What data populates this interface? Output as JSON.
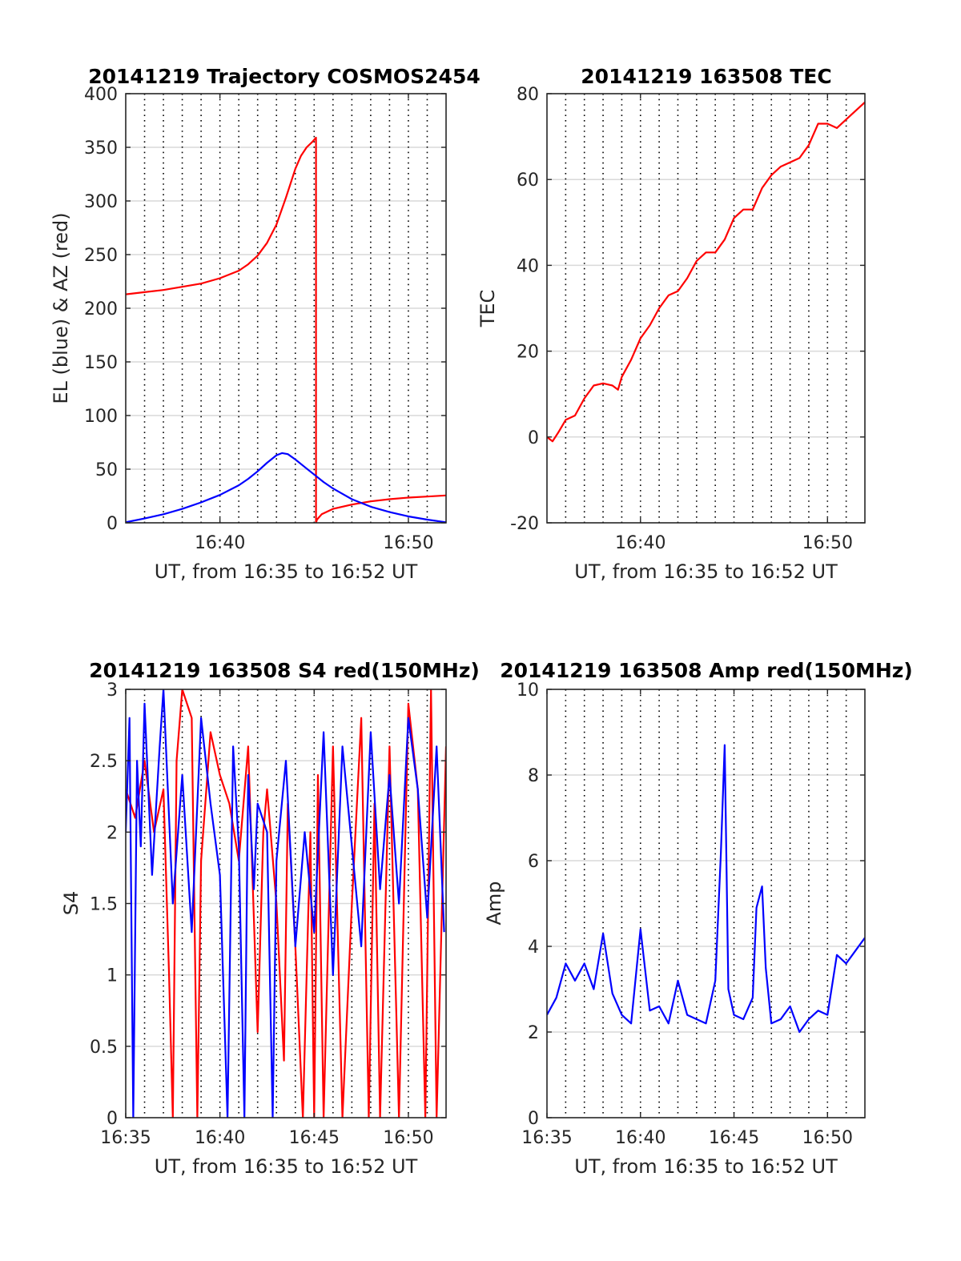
{
  "colors": {
    "red": "#ff0000",
    "blue": "#0000ff",
    "axis": "#262626",
    "hgrid": "#d9d9d9",
    "vgrid": "#000000"
  },
  "chart_data": [
    {
      "type": "line",
      "title": "20141219 Trajectory COSMOS2454",
      "xlabel": "UT, from 16:35 to 16:52 UT",
      "ylabel": "EL (blue) & AZ (red)",
      "xlim_minutes": [
        35,
        52
      ],
      "x_ticks": [
        40,
        50
      ],
      "x_tick_labels": [
        "16:40",
        "16:50"
      ],
      "ylim": [
        0,
        400
      ],
      "y_ticks": [
        0,
        50,
        100,
        150,
        200,
        250,
        300,
        350,
        400
      ],
      "y_tick_labels": [
        "0",
        "50",
        "100",
        "150",
        "200",
        "250",
        "300",
        "350",
        "400"
      ],
      "vgrid_minutes": [
        35,
        36,
        37,
        38,
        39,
        40,
        41,
        42,
        43,
        44,
        45,
        46,
        47,
        48,
        49,
        50,
        51,
        52
      ],
      "grid": true,
      "series": [
        {
          "color": "red",
          "x": [
            35.0,
            36.0,
            37.0,
            38.0,
            39.0,
            40.0,
            41.0,
            41.5,
            42.0,
            42.5,
            43.0,
            43.5,
            44.0,
            44.3,
            44.6,
            44.9,
            45.1,
            45.1,
            45.15,
            45.4,
            46.0,
            47.0,
            48.0,
            49.0,
            50.0,
            51.0,
            52.0
          ],
          "y": [
            213,
            215,
            217,
            220,
            223,
            228,
            235,
            241,
            249,
            261,
            278,
            303,
            330,
            342,
            350,
            355,
            359,
            0,
            3,
            8,
            13,
            17,
            20,
            22,
            23.5,
            24.5,
            25.5
          ]
        },
        {
          "color": "blue",
          "x": [
            35.0,
            36.0,
            37.0,
            38.0,
            39.0,
            40.0,
            41.0,
            41.5,
            42.0,
            42.5,
            43.0,
            43.3,
            43.6,
            44.0,
            44.5,
            45.0,
            45.5,
            46.0,
            46.5,
            47.0,
            48.0,
            49.0,
            50.0,
            51.0,
            52.0
          ],
          "y": [
            0.5,
            4,
            8,
            13,
            19,
            26,
            35,
            41,
            48,
            56,
            63,
            65,
            64,
            59,
            52,
            45,
            38,
            32,
            27,
            22,
            15,
            10,
            6,
            3,
            0.5
          ]
        }
      ]
    },
    {
      "type": "line",
      "title": "20141219 163508 TEC",
      "xlabel": "UT, from 16:35 to 16:52 UT",
      "ylabel": "TEC",
      "xlim_minutes": [
        35,
        52
      ],
      "x_ticks": [
        40,
        50
      ],
      "x_tick_labels": [
        "16:40",
        "16:50"
      ],
      "ylim": [
        -20,
        80
      ],
      "y_ticks": [
        -20,
        0,
        20,
        40,
        60,
        80
      ],
      "y_tick_labels": [
        "-20",
        "0",
        "20",
        "40",
        "60",
        "80"
      ],
      "vgrid_minutes": [
        35,
        36,
        37,
        38,
        39,
        40,
        41,
        42,
        43,
        44,
        45,
        46,
        47,
        48,
        49,
        50,
        51,
        52
      ],
      "grid": true,
      "series": [
        {
          "color": "red",
          "x": [
            35.0,
            35.3,
            35.6,
            36.0,
            36.5,
            37.0,
            37.5,
            38.0,
            38.5,
            38.8,
            39.0,
            39.5,
            40.0,
            40.5,
            41.0,
            41.5,
            42.0,
            42.5,
            43.0,
            43.5,
            44.0,
            44.5,
            45.0,
            45.5,
            46.0,
            46.5,
            47.0,
            47.5,
            48.0,
            48.5,
            49.0,
            49.5,
            50.0,
            50.5,
            51.0,
            51.5,
            52.0
          ],
          "y": [
            0,
            -1,
            1,
            4,
            5,
            9,
            12,
            12.5,
            12,
            11,
            14,
            18,
            23,
            26,
            30,
            33,
            34,
            37,
            41,
            43,
            43,
            46,
            51,
            53,
            53,
            58,
            61,
            63,
            64,
            65,
            68,
            73,
            73,
            72,
            74,
            76,
            78
          ]
        }
      ]
    },
    {
      "type": "line",
      "title": "20141219 163508 S4 red(150MHz)",
      "xlabel": "UT, from 16:35 to 16:52 UT",
      "ylabel": "S4",
      "xlim_minutes": [
        35,
        52
      ],
      "x_ticks": [
        35,
        40,
        45,
        50
      ],
      "x_tick_labels": [
        "16:35",
        "16:40",
        "16:45",
        "16:50"
      ],
      "ylim": [
        0,
        3
      ],
      "y_ticks": [
        0,
        0.5,
        1,
        1.5,
        2,
        2.5,
        3
      ],
      "y_tick_labels": [
        "0",
        "0.5",
        "1",
        "1.5",
        "2",
        "2.5",
        "3"
      ],
      "vgrid_minutes": [
        35,
        36,
        37,
        38,
        39,
        40,
        41,
        42,
        43,
        44,
        45,
        46,
        47,
        48,
        49,
        50,
        51,
        52
      ],
      "grid": true,
      "series": [
        {
          "color": "red",
          "x": [
            35.0,
            35.5,
            36.0,
            36.5,
            37.0,
            37.3,
            37.5,
            37.7,
            38.0,
            38.5,
            38.8,
            39.0,
            39.5,
            40.0,
            40.5,
            41.0,
            41.5,
            42.0,
            42.3,
            42.5,
            43.0,
            43.4,
            43.6,
            44.0,
            44.4,
            44.8,
            45.0,
            45.2,
            45.5,
            46.0,
            46.5,
            47.0,
            47.5,
            47.9,
            48.2,
            48.5,
            49.0,
            49.5,
            50.0,
            50.5,
            50.9,
            51.2,
            51.5,
            52.0
          ],
          "y": [
            2.3,
            2.1,
            2.5,
            2.0,
            2.3,
            1.0,
            0.0,
            2.5,
            3.0,
            2.8,
            0.0,
            1.8,
            2.7,
            2.4,
            2.2,
            1.8,
            2.6,
            0.6,
            2.0,
            2.3,
            1.5,
            0.4,
            2.2,
            1.2,
            0.0,
            2.0,
            0.0,
            2.4,
            0.0,
            2.6,
            0.0,
            1.5,
            2.8,
            0.0,
            2.2,
            0.0,
            2.6,
            0.0,
            2.9,
            2.3,
            0.0,
            3.0,
            0.0,
            2.6
          ]
        },
        {
          "color": "blue",
          "x": [
            35.0,
            35.2,
            35.4,
            35.6,
            35.8,
            36.0,
            36.4,
            36.8,
            37.0,
            37.5,
            38.0,
            38.5,
            39.0,
            39.5,
            40.0,
            40.4,
            40.7,
            41.0,
            41.3,
            41.5,
            41.8,
            42.0,
            42.5,
            42.8,
            43.0,
            43.5,
            44.0,
            44.5,
            45.0,
            45.5,
            46.0,
            46.5,
            47.0,
            47.5,
            48.0,
            48.5,
            49.0,
            49.5,
            50.0,
            50.5,
            51.0,
            51.5,
            51.9
          ],
          "y": [
            2.0,
            2.8,
            0.0,
            2.5,
            1.9,
            2.9,
            1.7,
            2.6,
            3.0,
            1.5,
            2.4,
            1.3,
            2.8,
            2.2,
            1.7,
            0.0,
            2.6,
            1.9,
            0.0,
            2.4,
            1.6,
            2.2,
            2.0,
            0.0,
            1.8,
            2.5,
            1.2,
            2.0,
            1.3,
            2.7,
            1.0,
            2.6,
            1.9,
            1.2,
            2.7,
            1.6,
            2.4,
            1.5,
            2.8,
            2.3,
            1.4,
            2.6,
            1.3
          ]
        }
      ]
    },
    {
      "type": "line",
      "title": "20141219 163508 Amp red(150MHz)",
      "xlabel": "UT, from 16:35 to 16:52 UT",
      "ylabel": "Amp",
      "xlim_minutes": [
        35,
        52
      ],
      "x_ticks": [
        35,
        40,
        45,
        50
      ],
      "x_tick_labels": [
        "16:35",
        "16:40",
        "16:45",
        "16:50"
      ],
      "ylim": [
        0,
        10
      ],
      "y_ticks": [
        0,
        2,
        4,
        6,
        8,
        10
      ],
      "y_tick_labels": [
        "0",
        "2",
        "4",
        "6",
        "8",
        "10"
      ],
      "vgrid_minutes": [
        35,
        36,
        37,
        38,
        39,
        40,
        41,
        42,
        43,
        44,
        45,
        46,
        47,
        48,
        49,
        50,
        51,
        52
      ],
      "grid": true,
      "series": [
        {
          "color": "blue",
          "x": [
            35.0,
            35.5,
            36.0,
            36.5,
            37.0,
            37.5,
            38.0,
            38.5,
            39.0,
            39.5,
            40.0,
            40.5,
            41.0,
            41.5,
            42.0,
            42.5,
            43.0,
            43.5,
            44.0,
            44.3,
            44.5,
            44.7,
            45.0,
            45.5,
            46.0,
            46.2,
            46.5,
            46.7,
            47.0,
            47.5,
            48.0,
            48.5,
            49.0,
            49.5,
            50.0,
            50.5,
            51.0,
            51.5,
            52.0
          ],
          "y": [
            2.4,
            2.8,
            3.6,
            3.2,
            3.6,
            3.0,
            4.3,
            2.9,
            2.4,
            2.2,
            4.4,
            2.5,
            2.6,
            2.2,
            3.2,
            2.4,
            2.3,
            2.2,
            3.2,
            6.2,
            8.7,
            3.0,
            2.4,
            2.3,
            2.8,
            4.9,
            5.4,
            3.5,
            2.2,
            2.3,
            2.6,
            2.0,
            2.3,
            2.5,
            2.4,
            3.8,
            3.6,
            3.9,
            4.2
          ]
        }
      ]
    }
  ]
}
